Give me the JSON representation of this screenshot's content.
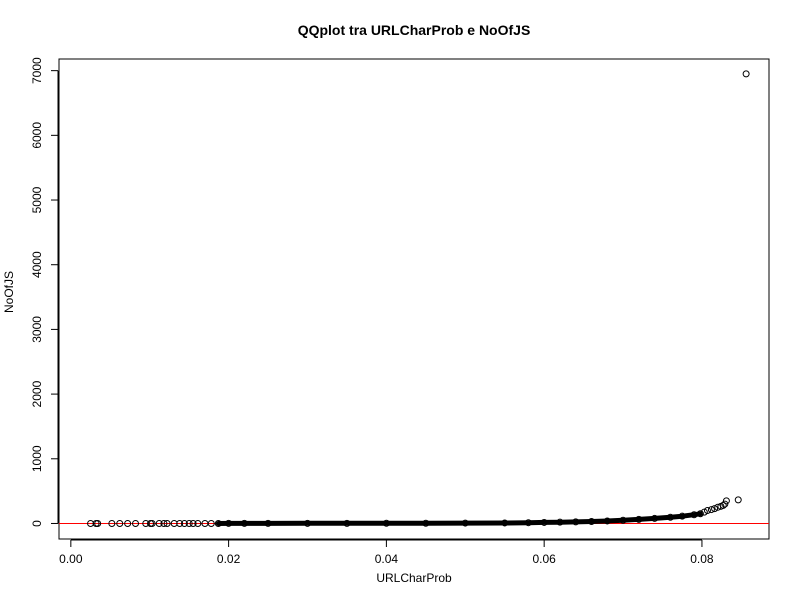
{
  "chart_data": {
    "type": "scatter",
    "title": "QQplot tra URLCharProb e NoOfJS",
    "xlabel": "URLCharProb",
    "ylabel": "NoOfJS",
    "xlim": [
      -0.0015,
      0.0885
    ],
    "ylim": [
      -240,
      7180
    ],
    "x_ticks": [
      0.0,
      0.02,
      0.04,
      0.06,
      0.08
    ],
    "x_tick_labels": [
      "0.00",
      "0.02",
      "0.04",
      "0.06",
      "0.08"
    ],
    "y_ticks": [
      0,
      1000,
      2000,
      3000,
      4000,
      5000,
      6000,
      7000
    ],
    "y_tick_labels": [
      "0",
      "1000",
      "2000",
      "3000",
      "4000",
      "5000",
      "6000",
      "7000"
    ],
    "grid": false,
    "point_style": "open-circle",
    "point_color": "#000000",
    "reference_line": {
      "type": "horizontal",
      "y": 0,
      "color": "#ff0000"
    },
    "series": [
      {
        "x": [
          0.0025,
          0.0032,
          0.0034,
          0.0052,
          0.0062,
          0.0072,
          0.0082,
          0.0095,
          0.0101,
          0.0103,
          0.0112,
          0.0118,
          0.0122,
          0.0131,
          0.0138,
          0.0144,
          0.015,
          0.0155,
          0.0161,
          0.017,
          0.0178,
          0.0187,
          0.02,
          0.022,
          0.025,
          0.03,
          0.035,
          0.04,
          0.045,
          0.05,
          0.055,
          0.058,
          0.06,
          0.062,
          0.064,
          0.066,
          0.068,
          0.07,
          0.072,
          0.074,
          0.076,
          0.0775,
          0.079,
          0.0798,
          0.0803,
          0.0807,
          0.0812,
          0.0816,
          0.082,
          0.0824,
          0.0827,
          0.0829,
          0.0831,
          0.0846,
          0.0856
        ],
        "y": [
          0,
          0,
          0,
          0,
          0,
          0,
          0,
          0,
          0,
          0,
          0,
          0,
          0,
          0,
          0,
          0,
          0,
          0,
          0,
          0,
          0,
          0,
          1,
          1,
          1,
          2,
          2,
          3,
          4,
          6,
          8,
          12,
          16,
          20,
          25,
          31,
          39,
          50,
          63,
          78,
          96,
          113,
          135,
          150,
          175,
          200,
          215,
          230,
          250,
          265,
          280,
          300,
          350,
          365,
          6950
        ]
      }
    ]
  }
}
